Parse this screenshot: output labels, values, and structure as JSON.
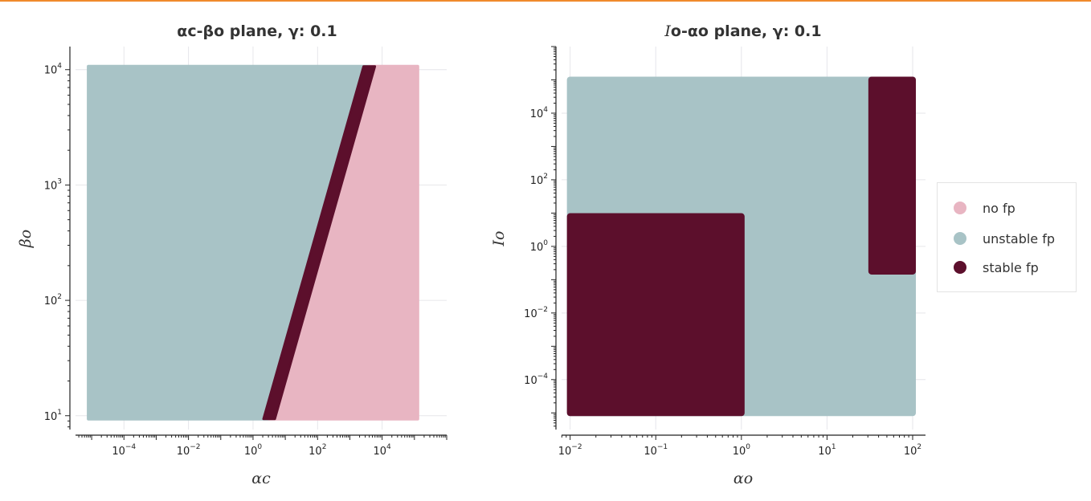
{
  "colors": {
    "no_fp": "#e8b5c2",
    "unstable_fp": "#a8c3c6",
    "stable_fp": "#5c0f2c",
    "grid": "#e6e6ea",
    "axis": "#222222",
    "top_rule": "#f08a2c"
  },
  "legend": {
    "entries": [
      {
        "key": "no_fp",
        "label": "no fp"
      },
      {
        "key": "unstable_fp",
        "label": "unstable fp"
      },
      {
        "key": "stable_fp",
        "label": "stable fp"
      }
    ]
  },
  "chart_data": [
    {
      "type": "scatter",
      "title": "αc-βo plane, γ: 0.1",
      "xlabel": "αc",
      "ylabel": "βo",
      "xscale": "log",
      "yscale": "log",
      "xlim_log10": [
        -5.5,
        6
      ],
      "ylim_log10": [
        0.88,
        4.2
      ],
      "xticks": [
        {
          "exp": -4,
          "base": "10",
          "sup": "−4"
        },
        {
          "exp": -2,
          "base": "10",
          "sup": "−2"
        },
        {
          "exp": 0,
          "base": "10",
          "sup": "0"
        },
        {
          "exp": 2,
          "base": "10",
          "sup": "2"
        },
        {
          "exp": 4,
          "base": "10",
          "sup": "4"
        }
      ],
      "yticks": [
        {
          "exp": 1,
          "base": "10",
          "sup": "1"
        },
        {
          "exp": 2,
          "base": "10",
          "sup": "2"
        },
        {
          "exp": 3,
          "base": "10",
          "sup": "3"
        },
        {
          "exp": 4,
          "base": "10",
          "sup": "4"
        }
      ],
      "grid": true,
      "data_extent_log10": {
        "x": [
          -5,
          5
        ],
        "y": [
          1,
          4
        ]
      },
      "regions": [
        {
          "class": "unstable_fp",
          "description": "left of stable band"
        },
        {
          "class": "stable_fp",
          "band": {
            "x_at_ymin": 0.5,
            "x_at_ymax": 3.6,
            "width": 0.35
          }
        },
        {
          "class": "no_fp",
          "description": "right of stable band"
        }
      ]
    },
    {
      "type": "scatter",
      "title": "Io-αo plane, γ: 0.1",
      "title_parts": {
        "italic": "I",
        "rest": "o-αo plane, γ: 0.1"
      },
      "xlabel": "αo",
      "ylabel": "Io",
      "xscale": "log",
      "yscale": "log",
      "xlim_log10": [
        -2.1,
        2.15
      ],
      "ylim_log10": [
        -5.5,
        6
      ],
      "xticks": [
        {
          "exp": -2,
          "base": "10",
          "sup": "−2"
        },
        {
          "exp": -1,
          "base": "10",
          "sup": "−1"
        },
        {
          "exp": 0,
          "base": "10",
          "sup": "0"
        },
        {
          "exp": 1,
          "base": "10",
          "sup": "1"
        },
        {
          "exp": 2,
          "base": "10",
          "sup": "2"
        }
      ],
      "yticks": [
        {
          "exp": -4,
          "base": "10",
          "sup": "−4"
        },
        {
          "exp": -2,
          "base": "10",
          "sup": "−2"
        },
        {
          "exp": 0,
          "base": "10",
          "sup": "0"
        },
        {
          "exp": 2,
          "base": "10",
          "sup": "2"
        },
        {
          "exp": 4,
          "base": "10",
          "sup": "4"
        }
      ],
      "grid": true,
      "data_extent_log10": {
        "x": [
          -2,
          2
        ],
        "y": [
          -5,
          5
        ]
      },
      "regions": [
        {
          "class": "unstable_fp",
          "x_log10": [
            -2,
            2
          ],
          "y_log10": [
            -5,
            5
          ]
        },
        {
          "class": "stable_fp",
          "x_log10": [
            -2,
            0
          ],
          "y_log10": [
            -5,
            0.9
          ]
        },
        {
          "class": "stable_fp",
          "x_log10": [
            1.52,
            2
          ],
          "y_log10": [
            -0.75,
            5
          ]
        }
      ]
    }
  ]
}
